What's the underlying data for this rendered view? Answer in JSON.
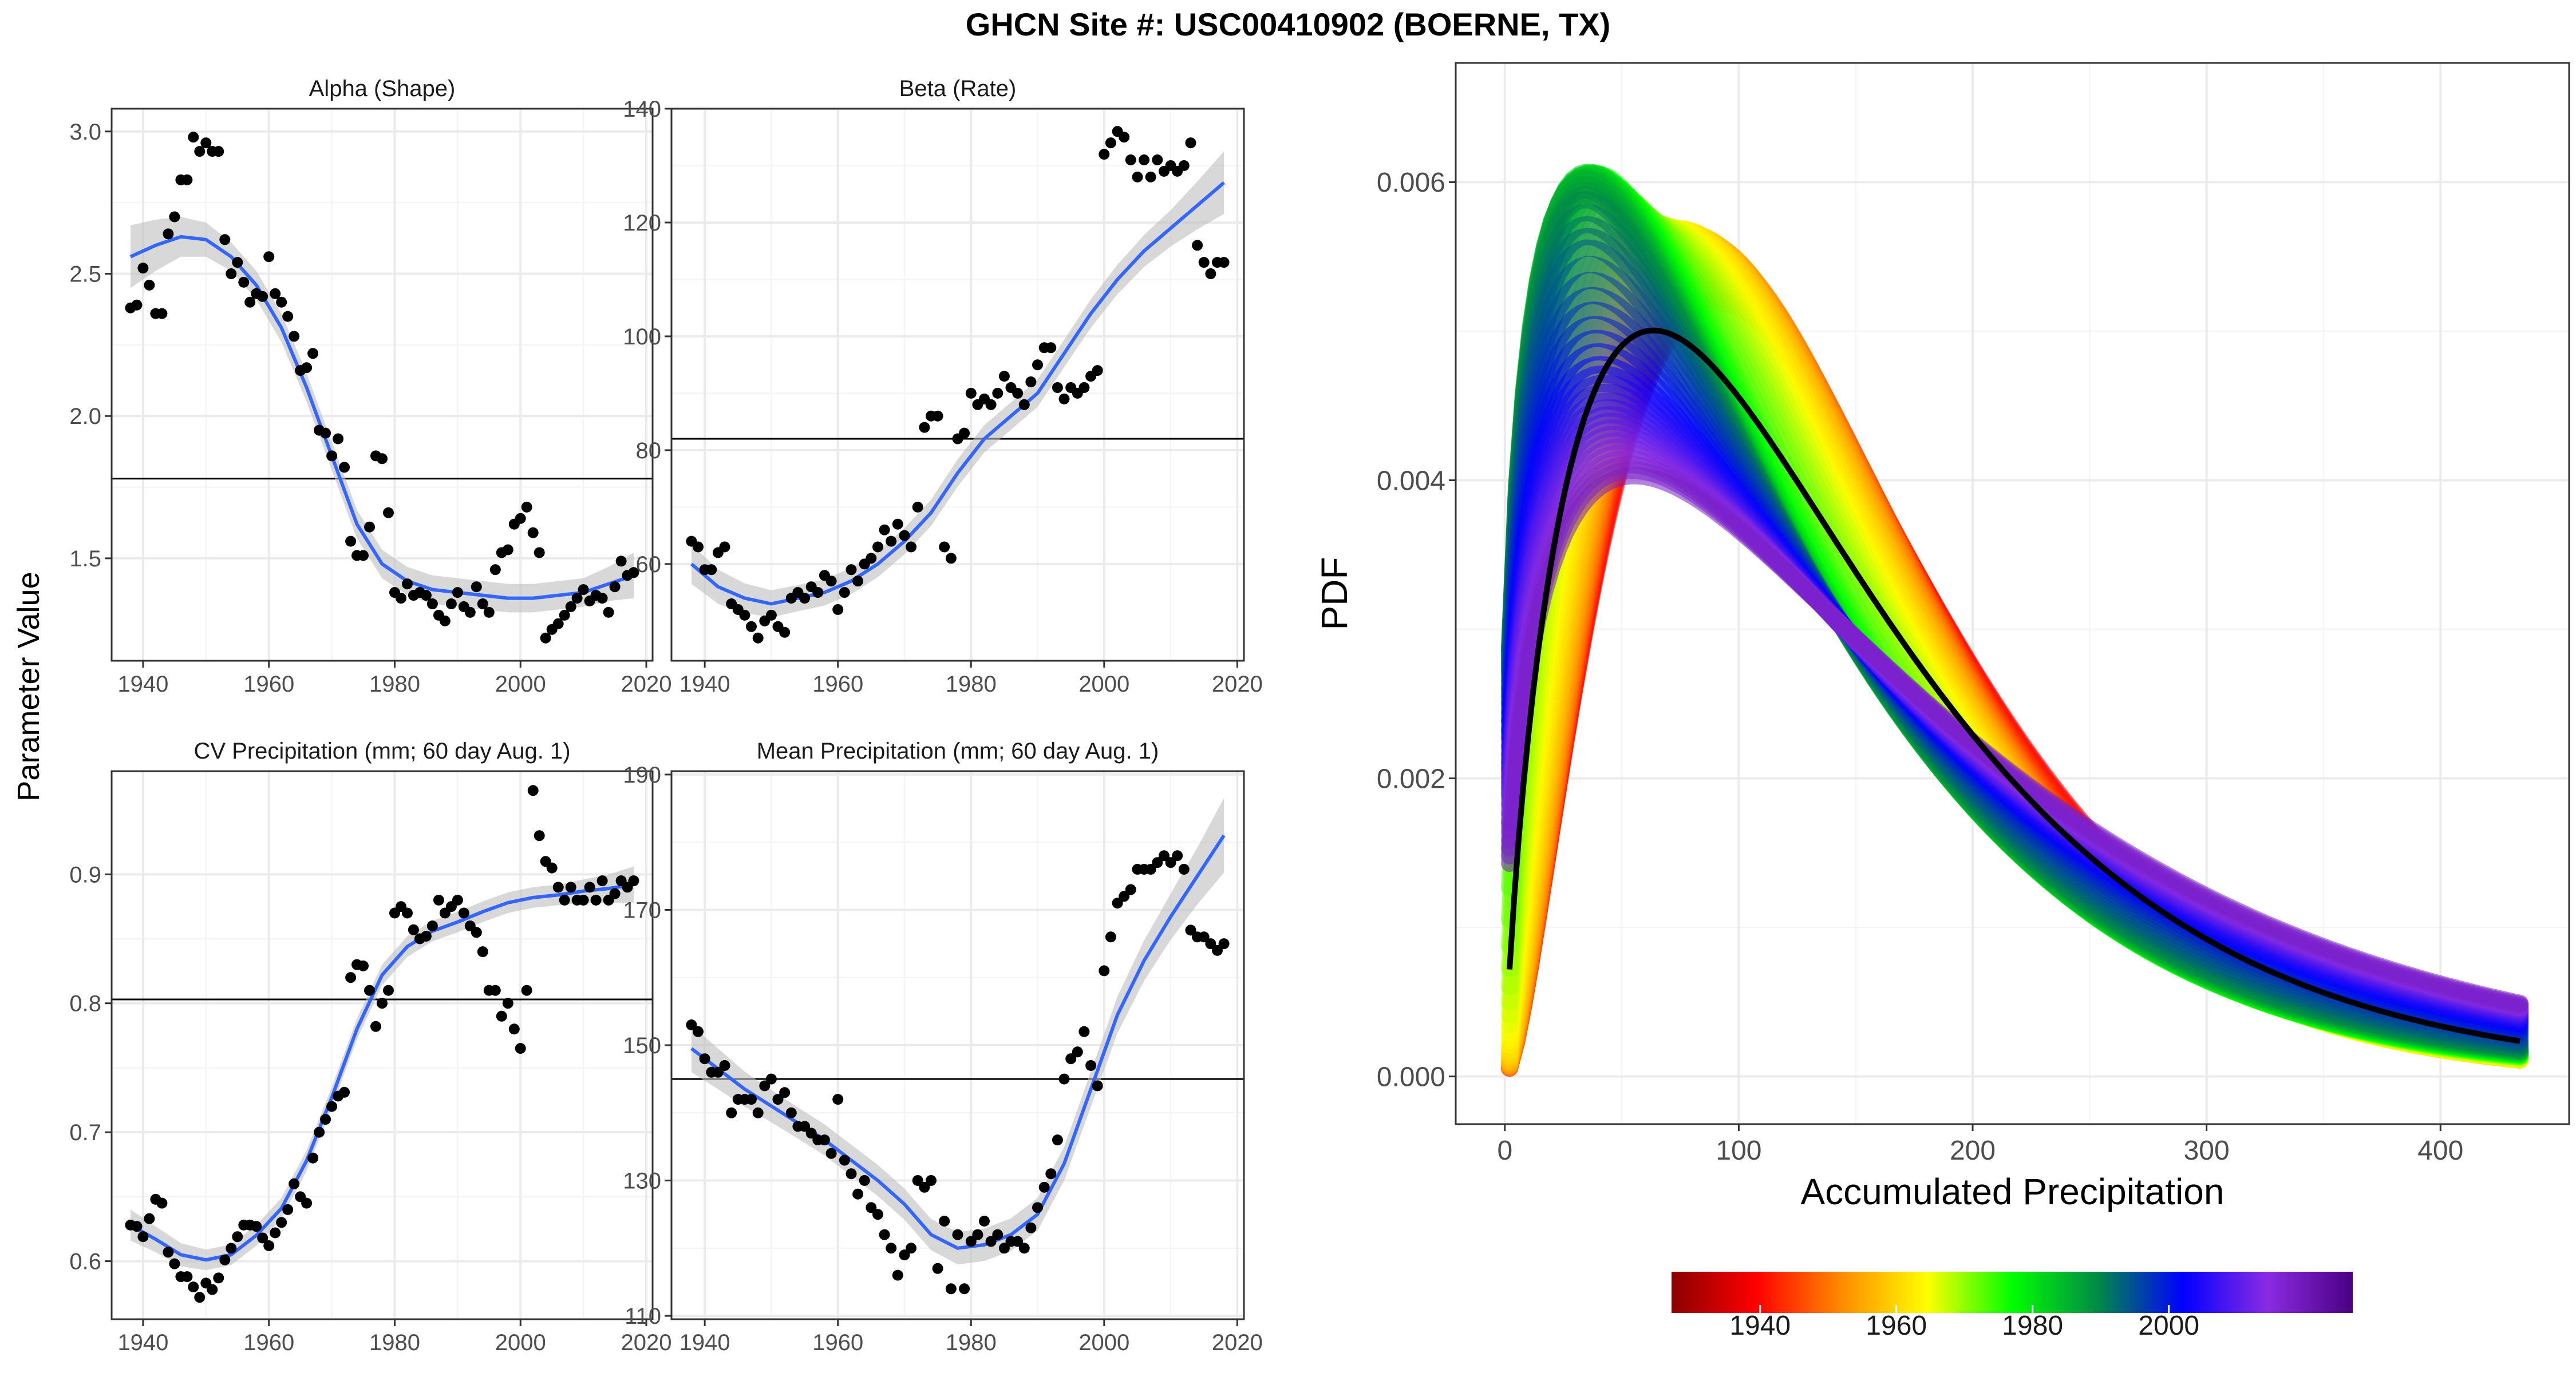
{
  "figure": {
    "title": "GHCN Site #: USC00410902 (BOERNE, TX)",
    "shared_ylabel": "Parameter Value"
  },
  "colors": {
    "points": "#000000",
    "smooth_line": "#3366FF",
    "ribbon": "#BEBEBE",
    "hline": "#000000",
    "grid_major": "#EBEBEB",
    "grid_minor": "#F5F5F5",
    "panel_border": "#333333",
    "mean_pdf": "#000000",
    "palette": [
      "#8B0000",
      "#FF0000",
      "#FF8C00",
      "#FFFF00",
      "#00FF00",
      "#008B45",
      "#0000FF",
      "#8A2BE2",
      "#4B0082"
    ]
  },
  "chart_data": [
    {
      "name": "alpha",
      "type": "scatter",
      "title": "Alpha (Shape)",
      "xlabel": "",
      "ylabel": "",
      "xlim": [
        1935,
        2021
      ],
      "ylim": [
        1.14,
        3.08
      ],
      "xticks": [
        1940,
        1960,
        1980,
        2000,
        2020
      ],
      "yticks": [
        1.5,
        2.0,
        2.5,
        3.0
      ],
      "ytick_labels": [
        "1.5",
        "2.0",
        "2.5",
        "3.0"
      ],
      "hline": 1.78,
      "x": [
        1938,
        1939,
        1940,
        1941,
        1942,
        1943,
        1944,
        1945,
        1946,
        1947,
        1948,
        1949,
        1950,
        1951,
        1952,
        1953,
        1954,
        1955,
        1956,
        1957,
        1958,
        1959,
        1960,
        1961,
        1962,
        1963,
        1964,
        1965,
        1966,
        1967,
        1968,
        1969,
        1970,
        1971,
        1972,
        1973,
        1974,
        1975,
        1976,
        1977,
        1978,
        1979,
        1980,
        1981,
        1982,
        1983,
        1984,
        1985,
        1986,
        1987,
        1988,
        1989,
        1990,
        1991,
        1992,
        1993,
        1994,
        1995,
        1996,
        1997,
        1998,
        1999,
        2000,
        2001,
        2002,
        2003,
        2004,
        2005,
        2006,
        2007,
        2008,
        2009,
        2010,
        2011,
        2012,
        2013,
        2014,
        2015,
        2016,
        2017,
        2018
      ],
      "y": [
        2.38,
        2.39,
        2.52,
        2.46,
        2.36,
        2.36,
        2.64,
        2.7,
        2.83,
        2.83,
        2.98,
        2.93,
        2.96,
        2.93,
        2.93,
        2.62,
        2.5,
        2.54,
        2.47,
        2.4,
        2.43,
        2.42,
        2.56,
        2.43,
        2.4,
        2.35,
        2.28,
        2.16,
        2.17,
        2.22,
        1.95,
        1.94,
        1.86,
        1.92,
        1.82,
        1.56,
        1.51,
        1.51,
        1.61,
        1.86,
        1.85,
        1.66,
        1.38,
        1.36,
        1.41,
        1.37,
        1.38,
        1.37,
        1.34,
        1.3,
        1.28,
        1.34,
        1.38,
        1.33,
        1.31,
        1.4,
        1.34,
        1.31,
        1.46,
        1.52,
        1.53,
        1.62,
        1.64,
        1.68,
        1.59,
        1.52,
        1.22,
        1.25,
        1.27,
        1.3,
        1.33,
        1.36,
        1.39,
        1.35,
        1.37,
        1.36,
        1.31,
        1.4,
        1.49,
        1.44,
        1.45
      ],
      "smooth_x": [
        1938,
        1942,
        1946,
        1950,
        1954,
        1958,
        1962,
        1966,
        1970,
        1974,
        1978,
        1982,
        1986,
        1990,
        1994,
        1998,
        2002,
        2006,
        2010,
        2014,
        2018
      ],
      "smooth_y": [
        2.56,
        2.6,
        2.63,
        2.62,
        2.56,
        2.46,
        2.31,
        2.1,
        1.86,
        1.62,
        1.48,
        1.42,
        1.39,
        1.38,
        1.37,
        1.36,
        1.36,
        1.37,
        1.38,
        1.41,
        1.44
      ],
      "ci": [
        0.11,
        0.09,
        0.07,
        0.06,
        0.05,
        0.05,
        0.05,
        0.05,
        0.05,
        0.05,
        0.05,
        0.05,
        0.05,
        0.05,
        0.05,
        0.05,
        0.05,
        0.05,
        0.05,
        0.06,
        0.08
      ]
    },
    {
      "name": "beta",
      "type": "scatter",
      "title": "Beta (Rate)",
      "xlabel": "",
      "ylabel": "",
      "xlim": [
        1935,
        2021
      ],
      "ylim": [
        43,
        140
      ],
      "xticks": [
        1940,
        1960,
        1980,
        2000,
        2020
      ],
      "yticks": [
        60,
        80,
        100,
        120,
        140
      ],
      "ytick_labels": [
        "60",
        "80",
        "100",
        "120",
        "140"
      ],
      "hline": 82,
      "x": [
        1938,
        1939,
        1940,
        1941,
        1942,
        1943,
        1944,
        1945,
        1946,
        1947,
        1948,
        1949,
        1950,
        1951,
        1952,
        1953,
        1954,
        1955,
        1956,
        1957,
        1958,
        1959,
        1960,
        1961,
        1962,
        1963,
        1964,
        1965,
        1966,
        1967,
        1968,
        1969,
        1970,
        1971,
        1972,
        1973,
        1974,
        1975,
        1976,
        1977,
        1978,
        1979,
        1980,
        1981,
        1982,
        1983,
        1984,
        1985,
        1986,
        1987,
        1988,
        1989,
        1990,
        1991,
        1992,
        1993,
        1994,
        1995,
        1996,
        1997,
        1998,
        1999,
        2000,
        2001,
        2002,
        2003,
        2004,
        2005,
        2006,
        2007,
        2008,
        2009,
        2010,
        2011,
        2012,
        2013,
        2014,
        2015,
        2016,
        2017,
        2018
      ],
      "y": [
        64,
        63,
        59,
        59,
        62,
        63,
        53,
        52,
        51,
        49,
        47,
        50,
        51,
        49,
        48,
        54,
        55,
        54,
        56,
        55,
        58,
        57,
        52,
        55,
        59,
        57,
        60,
        61,
        63,
        66,
        64,
        67,
        65,
        63,
        70,
        84,
        86,
        86,
        63,
        61,
        82,
        83,
        90,
        88,
        89,
        88,
        90,
        93,
        91,
        90,
        88,
        92,
        95,
        98,
        98,
        91,
        89,
        91,
        90,
        91,
        93,
        94,
        132,
        134,
        136,
        135,
        131,
        128,
        131,
        128,
        131,
        129,
        130,
        129,
        130,
        134,
        116,
        113,
        111,
        113,
        113
      ],
      "smooth_x": [
        1938,
        1942,
        1946,
        1950,
        1954,
        1958,
        1962,
        1966,
        1970,
        1974,
        1978,
        1982,
        1986,
        1990,
        1994,
        1998,
        2002,
        2006,
        2010,
        2014,
        2018
      ],
      "smooth_y": [
        60,
        56,
        54,
        53,
        54,
        55,
        57,
        60,
        64,
        69,
        76,
        82,
        86,
        90,
        97,
        104,
        110,
        115,
        119,
        123,
        127
      ],
      "ci": [
        3.5,
        3,
        2.6,
        2.4,
        2.3,
        2.3,
        2.3,
        2.3,
        2.3,
        2.3,
        2.4,
        2.4,
        2.4,
        2.4,
        2.4,
        2.5,
        2.6,
        2.8,
        3.2,
        4.2,
        5.5
      ]
    },
    {
      "name": "cv",
      "type": "scatter",
      "title": "CV Precipitation (mm; 60 day Aug. 1)",
      "xlabel": "",
      "ylabel": "",
      "xlim": [
        1935,
        2021
      ],
      "ylim": [
        0.555,
        0.98
      ],
      "xticks": [
        1940,
        1960,
        1980,
        2000,
        2020
      ],
      "yticks": [
        0.6,
        0.7,
        0.8,
        0.9
      ],
      "ytick_labels": [
        "0.6",
        "0.7",
        "0.8",
        "0.9"
      ],
      "hline": 0.803,
      "x": [
        1938,
        1939,
        1940,
        1941,
        1942,
        1943,
        1944,
        1945,
        1946,
        1947,
        1948,
        1949,
        1950,
        1951,
        1952,
        1953,
        1954,
        1955,
        1956,
        1957,
        1958,
        1959,
        1960,
        1961,
        1962,
        1963,
        1964,
        1965,
        1966,
        1967,
        1968,
        1969,
        1970,
        1971,
        1972,
        1973,
        1974,
        1975,
        1976,
        1977,
        1978,
        1979,
        1980,
        1981,
        1982,
        1983,
        1984,
        1985,
        1986,
        1987,
        1988,
        1989,
        1990,
        1991,
        1992,
        1993,
        1994,
        1995,
        1996,
        1997,
        1998,
        1999,
        2000,
        2001,
        2002,
        2003,
        2004,
        2005,
        2006,
        2007,
        2008,
        2009,
        2010,
        2011,
        2012,
        2013,
        2014,
        2015,
        2016,
        2017,
        2018
      ],
      "y": [
        0.628,
        0.627,
        0.619,
        0.633,
        0.648,
        0.645,
        0.607,
        0.598,
        0.588,
        0.588,
        0.58,
        0.572,
        0.583,
        0.578,
        0.587,
        0.601,
        0.61,
        0.619,
        0.628,
        0.628,
        0.627,
        0.618,
        0.612,
        0.622,
        0.63,
        0.64,
        0.66,
        0.65,
        0.645,
        0.68,
        0.7,
        0.71,
        0.72,
        0.728,
        0.731,
        0.82,
        0.83,
        0.829,
        0.81,
        0.782,
        0.8,
        0.81,
        0.87,
        0.875,
        0.87,
        0.857,
        0.85,
        0.852,
        0.86,
        0.88,
        0.87,
        0.875,
        0.88,
        0.87,
        0.86,
        0.855,
        0.84,
        0.81,
        0.81,
        0.79,
        0.8,
        0.78,
        0.765,
        0.81,
        0.965,
        0.93,
        0.91,
        0.905,
        0.89,
        0.88,
        0.89,
        0.88,
        0.88,
        0.89,
        0.88,
        0.895,
        0.88,
        0.885,
        0.895,
        0.89,
        0.895
      ],
      "smooth_x": [
        1938,
        1942,
        1946,
        1950,
        1954,
        1958,
        1962,
        1966,
        1970,
        1974,
        1978,
        1982,
        1986,
        1990,
        1994,
        1998,
        2002,
        2006,
        2010,
        2014,
        2018
      ],
      "smooth_y": [
        0.628,
        0.617,
        0.605,
        0.601,
        0.605,
        0.62,
        0.641,
        0.678,
        0.727,
        0.78,
        0.822,
        0.844,
        0.856,
        0.863,
        0.871,
        0.878,
        0.882,
        0.884,
        0.887,
        0.889,
        0.892
      ],
      "ci": [
        0.012,
        0.01,
        0.009,
        0.008,
        0.008,
        0.008,
        0.008,
        0.008,
        0.008,
        0.008,
        0.008,
        0.008,
        0.008,
        0.008,
        0.008,
        0.008,
        0.008,
        0.008,
        0.009,
        0.011,
        0.014
      ]
    },
    {
      "name": "mean",
      "type": "scatter",
      "title": "Mean Precipitation (mm; 60 day Aug. 1)",
      "xlabel": "",
      "ylabel": "",
      "xlim": [
        1935,
        2021
      ],
      "ylim": [
        109.5,
        190.5
      ],
      "xticks": [
        1940,
        1960,
        1980,
        2000,
        2020
      ],
      "yticks": [
        110,
        130,
        150,
        170,
        190
      ],
      "ytick_labels": [
        "110",
        "130",
        "150",
        "170",
        "190"
      ],
      "hline": 145,
      "x": [
        1938,
        1939,
        1940,
        1941,
        1942,
        1943,
        1944,
        1945,
        1946,
        1947,
        1948,
        1949,
        1950,
        1951,
        1952,
        1953,
        1954,
        1955,
        1956,
        1957,
        1958,
        1959,
        1960,
        1961,
        1962,
        1963,
        1964,
        1965,
        1966,
        1967,
        1968,
        1969,
        1970,
        1971,
        1972,
        1973,
        1974,
        1975,
        1976,
        1977,
        1978,
        1979,
        1980,
        1981,
        1982,
        1983,
        1984,
        1985,
        1986,
        1987,
        1988,
        1989,
        1990,
        1991,
        1992,
        1993,
        1994,
        1995,
        1996,
        1997,
        1998,
        1999,
        2000,
        2001,
        2002,
        2003,
        2004,
        2005,
        2006,
        2007,
        2008,
        2009,
        2010,
        2011,
        2012,
        2013,
        2014,
        2015,
        2016,
        2017,
        2018
      ],
      "y": [
        153,
        152,
        148,
        146,
        146,
        147,
        140,
        142,
        142,
        142,
        140,
        144,
        145,
        142,
        143,
        140,
        138,
        138,
        137,
        136,
        136,
        134,
        142,
        133,
        131,
        128,
        130,
        126,
        125,
        122,
        120,
        116,
        119,
        120,
        130,
        129,
        130,
        117,
        124,
        114,
        122,
        114,
        121,
        122,
        124,
        121,
        122,
        120,
        121,
        121,
        120,
        123,
        126,
        129,
        131,
        136,
        145,
        148,
        149,
        152,
        147,
        144,
        161,
        166,
        171,
        172,
        173,
        176,
        176,
        176,
        177,
        178,
        177,
        178,
        176,
        167,
        166,
        166,
        165,
        164,
        165
      ],
      "smooth_x": [
        1938,
        1942,
        1946,
        1950,
        1954,
        1958,
        1962,
        1966,
        1970,
        1974,
        1978,
        1982,
        1986,
        1990,
        1994,
        1998,
        2002,
        2006,
        2010,
        2014,
        2018
      ],
      "smooth_y": [
        149.5,
        146.5,
        143.5,
        141,
        138.5,
        136,
        133,
        130,
        126.5,
        122,
        120,
        120.5,
        122,
        125,
        132.5,
        143.5,
        154.5,
        162.5,
        169,
        175,
        181
      ],
      "ci": [
        3.5,
        3,
        2.6,
        2.4,
        2.3,
        2.3,
        2.3,
        2.3,
        2.3,
        2.3,
        2.4,
        2.4,
        2.4,
        2.4,
        2.5,
        2.6,
        2.7,
        3,
        3.4,
        4.2,
        5.5
      ]
    },
    {
      "name": "pdf",
      "type": "line",
      "title": "",
      "xlabel": "Accumulated Precipitation",
      "ylabel": "PDF",
      "xlim": [
        -21,
        455
      ],
      "ylim": [
        -0.00032,
        0.0068
      ],
      "xticks": [
        0,
        100,
        200,
        300,
        400
      ],
      "yticks": [
        0,
        0.002,
        0.004,
        0.006
      ],
      "ytick_labels": [
        "0.000",
        "0.002",
        "0.004",
        "0.006"
      ],
      "x_range": [
        2,
        434
      ],
      "mean_curve": {
        "alpha": 1.78,
        "mean": 145
      },
      "year_range": [
        1938,
        2018
      ],
      "colorbar_ticks": [
        1940,
        1960,
        1980,
        2000
      ],
      "colorbar_range": [
        1927,
        2027
      ]
    }
  ]
}
